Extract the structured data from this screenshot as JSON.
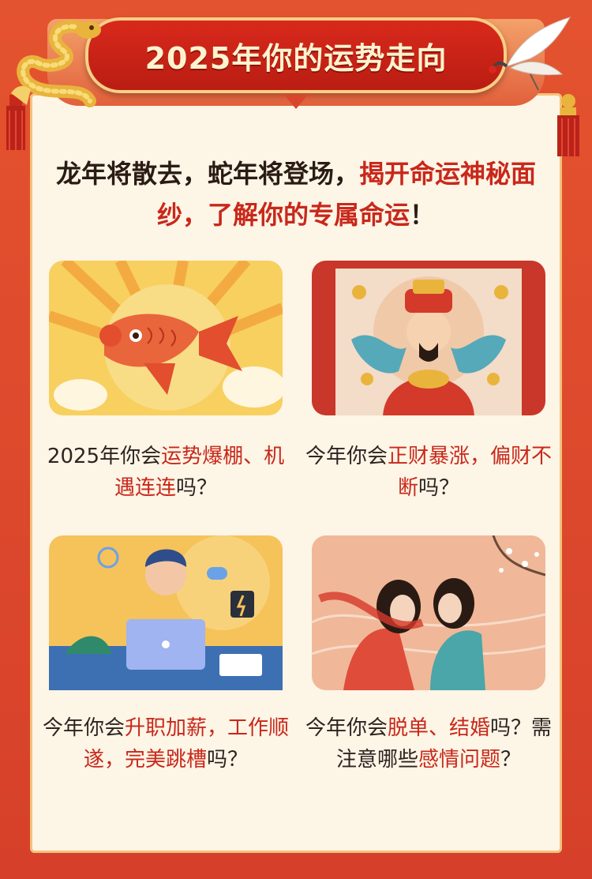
{
  "banner": {
    "title": "2025年你的运势走向"
  },
  "intro": {
    "parts": [
      "龙年将散去，蛇年将登场，",
      "揭开命运神秘面纱，了解你的专属命运",
      "！"
    ]
  },
  "cards": [
    {
      "image": "koi-fish-illustration",
      "caption": [
        "2025年你会",
        "运势爆棚、机遇连连",
        "吗？"
      ]
    },
    {
      "image": "god-of-wealth-illustration",
      "caption": [
        "今年你会",
        "正财暴涨，偏财不断",
        "吗？"
      ]
    },
    {
      "image": "office-worker-illustration",
      "caption": [
        "今年你会",
        "升职加薪，工作顺遂，完美跳槽",
        "吗？"
      ]
    },
    {
      "image": "couple-romance-illustration",
      "caption": [
        "今年你会",
        "脱单、结婚",
        "吗？需注意哪些",
        "感情问题",
        "？"
      ]
    }
  ],
  "colors": {
    "accent": "#c8281b",
    "background": "#d9462c",
    "panel": "#fdf5e6",
    "gold": "#f3c27a"
  }
}
